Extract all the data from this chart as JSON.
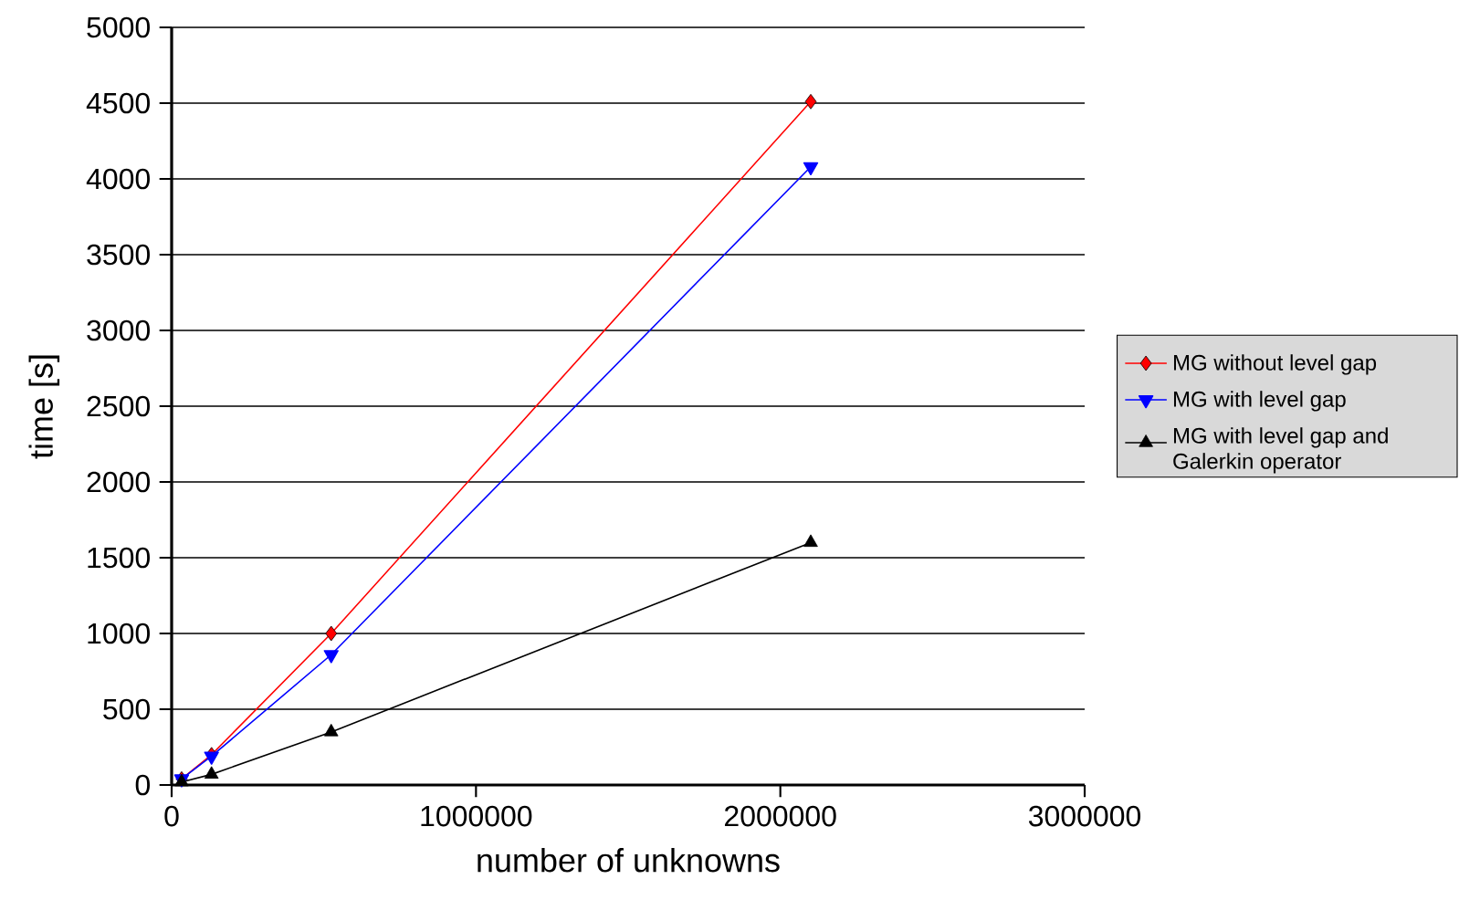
{
  "chart_data": {
    "type": "line",
    "xlabel": "number of unknowns",
    "ylabel": "time [s]",
    "x": [
      32768,
      131072,
      524288,
      2100000
    ],
    "series": [
      {
        "name": "MG without level gap",
        "color": "#ff0000",
        "marker": "diamond",
        "values": [
          40,
          200,
          1000,
          4510
        ]
      },
      {
        "name": "MG with level gap",
        "color": "#0000ff",
        "marker": "triangle-down",
        "values": [
          40,
          190,
          860,
          4080
        ]
      },
      {
        "name": "MG with level gap and Galerkin operator",
        "color": "#000000",
        "marker": "triangle",
        "values": [
          20,
          70,
          350,
          1600
        ]
      }
    ],
    "xlim": [
      0,
      3000000
    ],
    "xticks": [
      0,
      1000000,
      2000000,
      3000000
    ],
    "ylim": [
      0,
      5000
    ],
    "yticks": [
      0,
      500,
      1000,
      1500,
      2000,
      2500,
      3000,
      3500,
      4000,
      4500,
      5000
    ],
    "grid": "y",
    "legend": "right"
  }
}
